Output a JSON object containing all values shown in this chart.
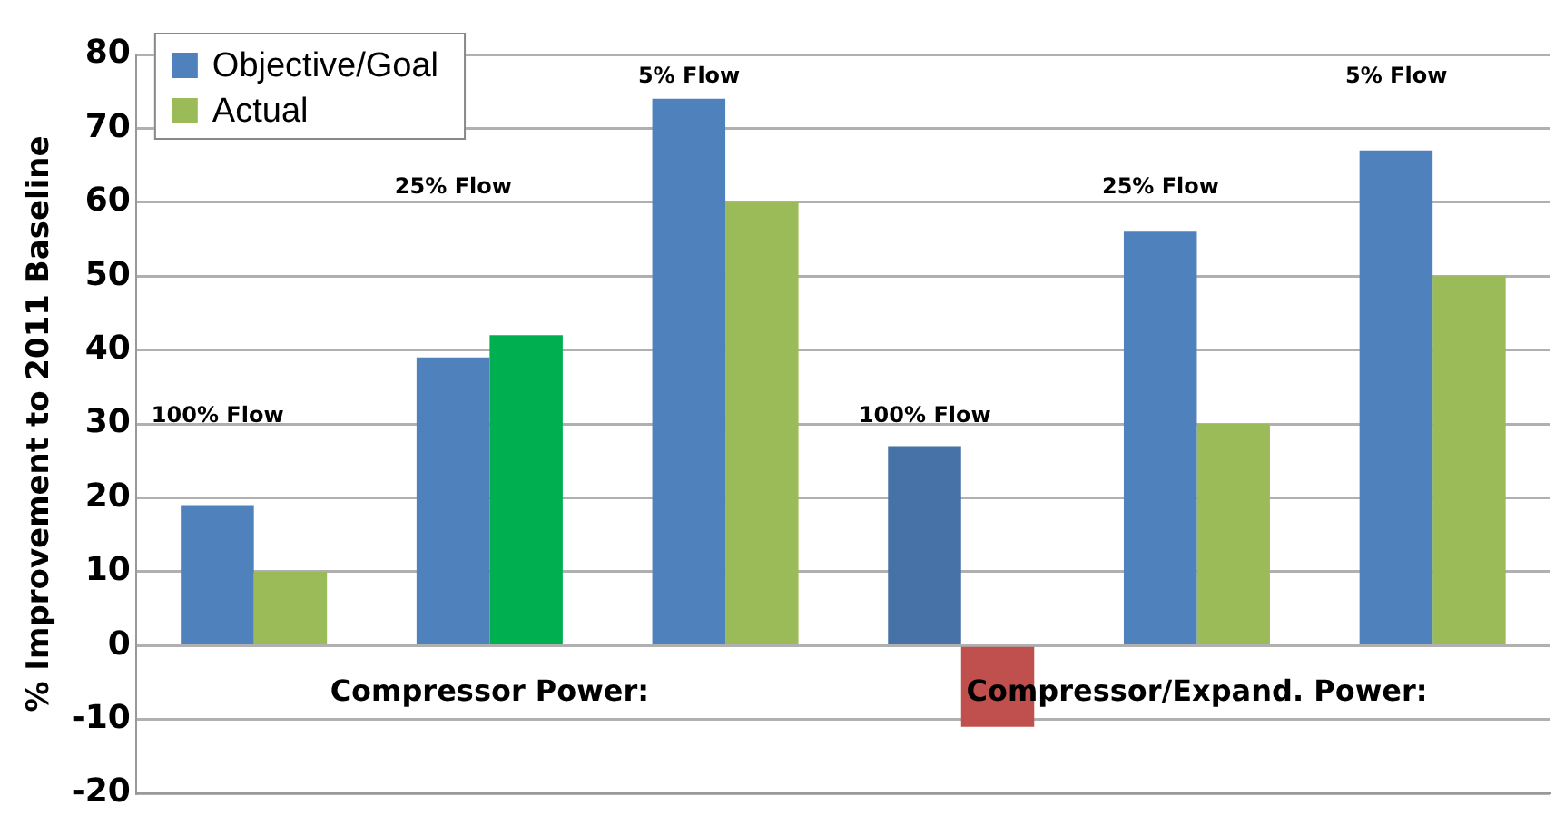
{
  "chart_data": {
    "type": "bar",
    "ylabel": "% Improvement to 2011 Baseline",
    "categories": [
      null,
      null,
      null,
      null,
      null,
      null
    ],
    "series": [
      {
        "name": "Objective/Goal",
        "color": "#4f81bd",
        "colors": [
          "#4f81bd",
          "#4f81bd",
          "#4f81bd",
          "#4672a8",
          "#4f81bd",
          "#4f81bd"
        ],
        "values": [
          19,
          39,
          74,
          27,
          56,
          67
        ]
      },
      {
        "name": "Actual",
        "color": "#9bbb59",
        "colors": [
          "#9bbb59",
          "#00b050",
          "#9bbb59",
          "#c0504d",
          "#9bbb59",
          "#9bbb59"
        ],
        "values": [
          10,
          42,
          60,
          -11,
          30,
          50
        ]
      }
    ],
    "ylim": [
      -20,
      80
    ],
    "yticks": [
      -20,
      -10,
      0,
      10,
      20,
      30,
      40,
      50,
      60,
      70,
      80
    ],
    "grid": "y",
    "legend": "top left",
    "tick_labels": "y",
    "annotations": [
      "100% Flow",
      "25% Flow",
      "5% Flow",
      "100% Flow",
      "25% Flow",
      "5% Flow",
      "Compressor Power:",
      "Compressor/Expand. Power:"
    ]
  }
}
